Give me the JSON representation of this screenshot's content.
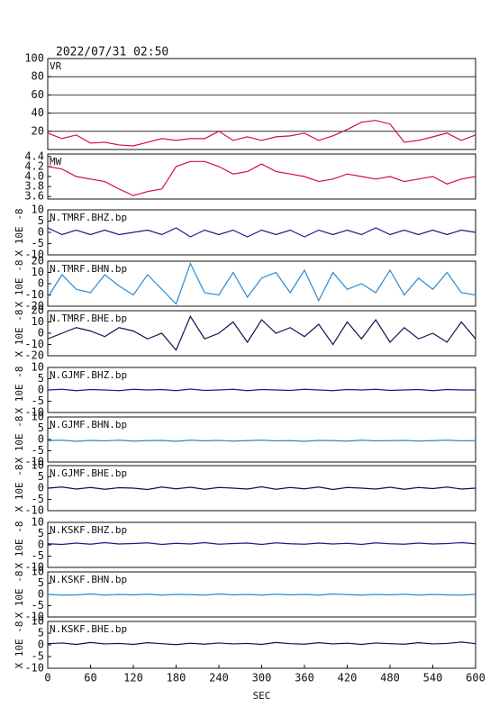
{
  "chart_data": [
    {
      "type": "line",
      "title": "2022/07/31 02:50",
      "label": "VR",
      "xlim": [
        0,
        600
      ],
      "ylim": [
        0,
        100
      ],
      "yticks": [
        20,
        40,
        60,
        80,
        100
      ],
      "grid": true,
      "x": [
        0,
        20,
        40,
        60,
        80,
        100,
        120,
        140,
        160,
        180,
        200,
        220,
        240,
        260,
        280,
        300,
        320,
        340,
        360,
        380,
        400,
        420,
        440,
        460,
        480,
        500,
        520,
        540,
        560,
        580,
        600
      ],
      "series": [
        {
          "color": "#d0103a",
          "values": [
            18,
            12,
            16,
            7,
            8,
            5,
            4,
            8,
            12,
            10,
            12,
            12,
            20,
            10,
            14,
            10,
            14,
            15,
            18,
            10,
            15,
            22,
            30,
            32,
            28,
            8,
            10,
            14,
            18,
            10,
            16
          ]
        }
      ]
    },
    {
      "type": "line",
      "label": "MW",
      "xlim": [
        0,
        600
      ],
      "ylim": [
        3.55,
        4.45
      ],
      "yticks": [
        3.6,
        3.8,
        {
          "value": 4,
          "label": "4.0"
        },
        4.2,
        4.4
      ],
      "grid": false,
      "x": [
        0,
        20,
        40,
        60,
        80,
        100,
        120,
        140,
        160,
        180,
        200,
        220,
        240,
        260,
        280,
        300,
        320,
        340,
        360,
        380,
        400,
        420,
        440,
        460,
        480,
        500,
        520,
        540,
        560,
        580,
        600
      ],
      "series": [
        {
          "color": "#d0103a",
          "values": [
            4.2,
            4.15,
            4.0,
            3.95,
            3.9,
            3.75,
            3.62,
            3.7,
            3.75,
            4.2,
            4.3,
            4.3,
            4.2,
            4.05,
            4.1,
            4.25,
            4.1,
            4.05,
            4.0,
            3.9,
            3.95,
            4.05,
            4.0,
            3.95,
            4.0,
            3.9,
            3.95,
            4.0,
            3.85,
            3.95,
            4.0
          ]
        }
      ]
    },
    {
      "type": "line",
      "label": "N.TMRF.BHZ.bp",
      "ylabel": "X 10E -8",
      "xlim": [
        0,
        600
      ],
      "ylim": [
        -10,
        10
      ],
      "yticks": [
        -10,
        -5,
        0,
        5,
        10
      ],
      "grid": false,
      "x": [
        0,
        20,
        40,
        60,
        80,
        100,
        120,
        140,
        160,
        180,
        200,
        220,
        240,
        260,
        280,
        300,
        320,
        340,
        360,
        380,
        400,
        420,
        440,
        460,
        480,
        500,
        520,
        540,
        560,
        580,
        600
      ],
      "series": [
        {
          "color": "#1c1c8c",
          "values": [
            2,
            -1,
            1,
            -1,
            1,
            -1,
            0,
            1,
            -1,
            2,
            -2,
            1,
            -1,
            1,
            -2,
            1,
            -1,
            1,
            -2,
            1,
            -1,
            1,
            -1,
            2,
            -1,
            1,
            -1,
            1,
            -1,
            1,
            0
          ]
        }
      ]
    },
    {
      "type": "line",
      "label": "N.TMRF.BHN.bp",
      "ylabel": "X 10E -8",
      "xlim": [
        0,
        600
      ],
      "ylim": [
        -20,
        20
      ],
      "yticks": [
        -20,
        -10,
        0,
        10,
        20
      ],
      "grid": false,
      "x": [
        0,
        20,
        40,
        60,
        80,
        100,
        120,
        140,
        160,
        180,
        200,
        220,
        240,
        260,
        280,
        300,
        320,
        340,
        360,
        380,
        400,
        420,
        440,
        460,
        480,
        500,
        520,
        540,
        560,
        580,
        600
      ],
      "series": [
        {
          "color": "#2a8ad0",
          "values": [
            -12,
            8,
            -5,
            -8,
            8,
            -2,
            -10,
            8,
            -5,
            -18,
            18,
            -8,
            -10,
            10,
            -12,
            5,
            10,
            -8,
            12,
            -15,
            10,
            -5,
            0,
            -8,
            12,
            -10,
            5,
            -5,
            10,
            -8,
            -10
          ]
        }
      ]
    },
    {
      "type": "line",
      "label": "N.TMRF.BHE.bp",
      "ylabel": "X 10E -8",
      "xlim": [
        0,
        600
      ],
      "ylim": [
        -20,
        20
      ],
      "yticks": [
        -20,
        -10,
        0,
        10,
        20
      ],
      "grid": false,
      "x": [
        0,
        20,
        40,
        60,
        80,
        100,
        120,
        140,
        160,
        180,
        200,
        220,
        240,
        260,
        280,
        300,
        320,
        340,
        360,
        380,
        400,
        420,
        440,
        460,
        480,
        500,
        520,
        540,
        560,
        580,
        600
      ],
      "series": [
        {
          "color": "#101050",
          "values": [
            -5,
            0,
            5,
            2,
            -3,
            5,
            2,
            -5,
            0,
            -15,
            15,
            -5,
            0,
            10,
            -8,
            12,
            0,
            5,
            -3,
            8,
            -10,
            10,
            -5,
            12,
            -8,
            5,
            -5,
            0,
            -8,
            10,
            -5
          ]
        }
      ]
    },
    {
      "type": "line",
      "label": "N.GJMF.BHZ.bp",
      "ylabel": "X 10E -8",
      "xlim": [
        0,
        600
      ],
      "ylim": [
        -10,
        10
      ],
      "yticks": [
        -10,
        -5,
        0,
        5,
        10
      ],
      "grid": false,
      "x": [
        0,
        20,
        40,
        60,
        80,
        100,
        120,
        140,
        160,
        180,
        200,
        220,
        240,
        260,
        280,
        300,
        320,
        340,
        360,
        380,
        400,
        420,
        440,
        460,
        480,
        500,
        520,
        540,
        560,
        580,
        600
      ],
      "series": [
        {
          "color": "#1c1c8c",
          "values": [
            0,
            0.3,
            -0.3,
            0.2,
            0,
            -0.3,
            0.3,
            0,
            0.2,
            -0.3,
            0.4,
            -0.2,
            0,
            0.3,
            -0.3,
            0.2,
            0,
            -0.2,
            0.3,
            0,
            -0.3,
            0.2,
            0,
            0.3,
            -0.2,
            0,
            0.2,
            -0.3,
            0.2,
            0,
            0
          ]
        }
      ]
    },
    {
      "type": "line",
      "label": "N.GJMF.BHN.bp",
      "ylabel": "X 10E -8",
      "xlim": [
        0,
        600
      ],
      "ylim": [
        -10,
        10
      ],
      "yticks": [
        -10,
        -5,
        0,
        5,
        10
      ],
      "grid": false,
      "x": [
        0,
        20,
        40,
        60,
        80,
        100,
        120,
        140,
        160,
        180,
        200,
        220,
        240,
        260,
        280,
        300,
        320,
        340,
        360,
        380,
        400,
        420,
        440,
        460,
        480,
        500,
        520,
        540,
        560,
        580,
        600
      ],
      "series": [
        {
          "color": "#2a8ad0",
          "values": [
            -0.5,
            -0.3,
            -0.8,
            -0.4,
            -0.6,
            -0.3,
            -0.7,
            -0.5,
            -0.4,
            -0.8,
            -0.3,
            -0.6,
            -0.4,
            -0.7,
            -0.5,
            -0.3,
            -0.6,
            -0.5,
            -0.8,
            -0.4,
            -0.5,
            -0.7,
            -0.3,
            -0.6,
            -0.5,
            -0.4,
            -0.7,
            -0.5,
            -0.3,
            -0.6,
            -0.5
          ]
        }
      ]
    },
    {
      "type": "line",
      "label": "N.GJMF.BHE.bp",
      "ylabel": "X 10E -8",
      "xlim": [
        0,
        600
      ],
      "ylim": [
        -10,
        10
      ],
      "yticks": [
        -10,
        -5,
        0,
        5,
        10
      ],
      "grid": false,
      "x": [
        0,
        20,
        40,
        60,
        80,
        100,
        120,
        140,
        160,
        180,
        200,
        220,
        240,
        260,
        280,
        300,
        320,
        340,
        360,
        380,
        400,
        420,
        440,
        460,
        480,
        500,
        520,
        540,
        560,
        580,
        600
      ],
      "series": [
        {
          "color": "#101050",
          "values": [
            0,
            0.5,
            -0.4,
            0.3,
            -0.5,
            0.2,
            0,
            -0.6,
            0.5,
            -0.3,
            0.4,
            -0.5,
            0.3,
            0,
            -0.4,
            0.6,
            -0.5,
            0.3,
            -0.3,
            0.5,
            -0.6,
            0.3,
            0,
            -0.4,
            0.4,
            -0.5,
            0.3,
            -0.2,
            0.5,
            -0.4,
            0
          ]
        }
      ]
    },
    {
      "type": "line",
      "label": "N.KSKF.BHZ.bp",
      "ylabel": "X 10E -8",
      "xlim": [
        0,
        600
      ],
      "ylim": [
        -10,
        10
      ],
      "yticks": [
        -10,
        -5,
        0,
        5,
        10
      ],
      "grid": false,
      "x": [
        0,
        20,
        40,
        60,
        80,
        100,
        120,
        140,
        160,
        180,
        200,
        220,
        240,
        260,
        280,
        300,
        320,
        340,
        360,
        380,
        400,
        420,
        440,
        460,
        480,
        500,
        520,
        540,
        560,
        580,
        600
      ],
      "series": [
        {
          "color": "#1c1c8c",
          "values": [
            0.5,
            0.2,
            0.8,
            0.3,
            1,
            0.4,
            0.6,
            0.9,
            0.2,
            0.7,
            0.4,
            1,
            0.3,
            0.6,
            0.8,
            0.2,
            0.9,
            0.5,
            0.3,
            0.8,
            0.4,
            0.7,
            0.2,
            0.9,
            0.5,
            0.3,
            0.8,
            0.4,
            0.6,
            1,
            0.5
          ]
        }
      ]
    },
    {
      "type": "line",
      "label": "N.KSKF.BHN.bp",
      "ylabel": "X 10E -8",
      "xlim": [
        0,
        600
      ],
      "ylim": [
        -10,
        10
      ],
      "yticks": [
        -10,
        -5,
        0,
        5,
        10
      ],
      "grid": false,
      "x": [
        0,
        20,
        40,
        60,
        80,
        100,
        120,
        140,
        160,
        180,
        200,
        220,
        240,
        260,
        280,
        300,
        320,
        340,
        360,
        380,
        400,
        420,
        440,
        460,
        480,
        500,
        520,
        540,
        560,
        580,
        600
      ],
      "series": [
        {
          "color": "#2a8ad0",
          "values": [
            0,
            -0.3,
            -0.2,
            0.2,
            -0.3,
            0,
            -0.2,
            0.1,
            -0.3,
            0,
            -0.1,
            -0.3,
            0.2,
            -0.2,
            0,
            -0.3,
            0.1,
            -0.2,
            0,
            -0.3,
            0.2,
            -0.1,
            -0.3,
            0,
            -0.2,
            0.1,
            -0.3,
            0,
            -0.2,
            -0.3,
            0
          ]
        }
      ]
    },
    {
      "type": "line",
      "label": "N.KSKF.BHE.bp",
      "ylabel": "X 10E -8",
      "xlim": [
        0,
        600
      ],
      "ylim": [
        -10,
        10
      ],
      "yticks": [
        -10,
        -5,
        0,
        5,
        10
      ],
      "grid": false,
      "xticks": [
        0,
        60,
        120,
        180,
        240,
        300,
        360,
        420,
        480,
        540,
        600
      ],
      "xlabel": "SEC",
      "x": [
        0,
        20,
        40,
        60,
        80,
        100,
        120,
        140,
        160,
        180,
        200,
        220,
        240,
        260,
        280,
        300,
        320,
        340,
        360,
        380,
        400,
        420,
        440,
        460,
        480,
        500,
        520,
        540,
        560,
        580,
        600
      ],
      "series": [
        {
          "color": "#101050",
          "values": [
            0.5,
            0.8,
            0.2,
            1,
            0.4,
            0.6,
            0.2,
            0.9,
            0.5,
            0.1,
            0.7,
            0.3,
            0.8,
            0.4,
            0.6,
            0.2,
            1,
            0.5,
            0.3,
            0.9,
            0.4,
            0.7,
            0.2,
            0.8,
            0.5,
            0.3,
            0.9,
            0.4,
            0.6,
            1.2,
            0.5
          ]
        }
      ]
    }
  ]
}
